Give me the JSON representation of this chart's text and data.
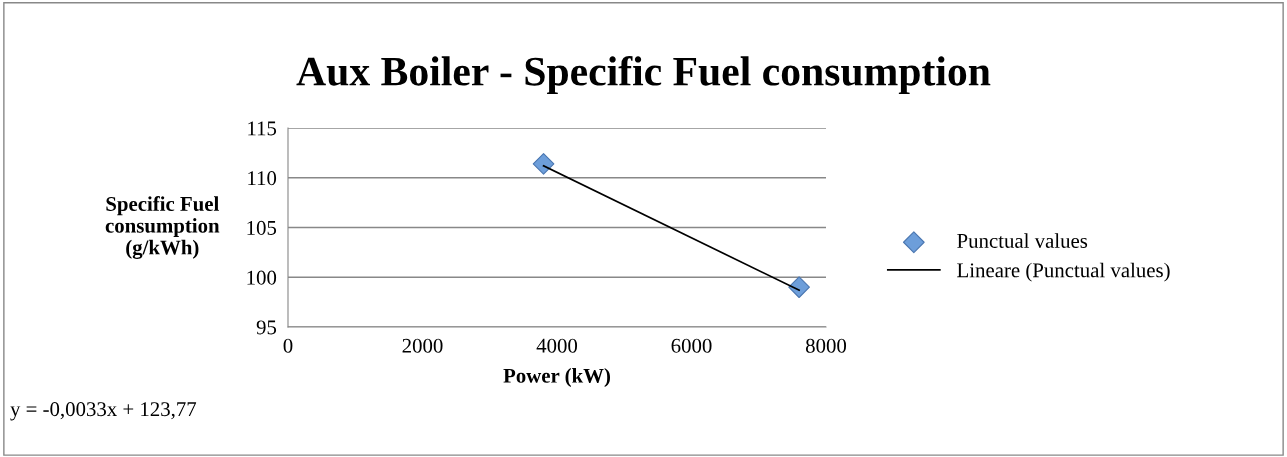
{
  "chart_data": {
    "type": "scatter",
    "title": "Aux Boiler - Specific Fuel consumption",
    "xlabel": "Power (kW)",
    "ylabel": "Specific Fuel\nconsumption\n(g/kWh)",
    "series": [
      {
        "name": "Punctual values",
        "color": "#6d9eda",
        "marker": "diamond",
        "values": [
          111.4,
          99.0
        ]
      },
      {
        "name": "Lineare (Punctual values)",
        "type": "line",
        "color": "#000000",
        "marker": "none",
        "values": [
          111.2,
          98.7
        ]
      }
    ],
    "x": [
      3800,
      7600
    ],
    "xlim": [
      0,
      8000
    ],
    "xticks": [
      0,
      2000,
      4000,
      6000,
      8000
    ],
    "ylim": [
      95,
      115
    ],
    "yticks": [
      95,
      100,
      105,
      110,
      115
    ],
    "grid": "y",
    "legend": "right",
    "annotations": [
      "y = -0,0033x + 123,77"
    ]
  }
}
